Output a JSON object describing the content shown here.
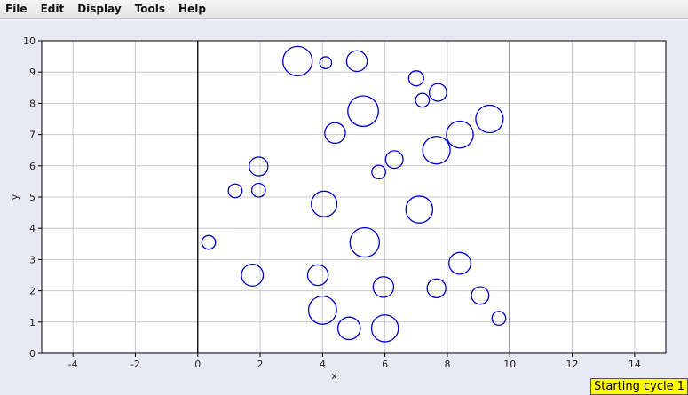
{
  "menu": {
    "items": [
      {
        "label": "File"
      },
      {
        "label": "Edit"
      },
      {
        "label": "Display"
      },
      {
        "label": "Tools"
      },
      {
        "label": "Help"
      }
    ]
  },
  "status": {
    "text": "Starting cycle 1"
  },
  "chart_data": {
    "type": "scatter",
    "xlabel": "x",
    "ylabel": "y",
    "xlim": [
      -5,
      15
    ],
    "ylim": [
      0,
      10
    ],
    "x_ticks": [
      -4,
      -2,
      0,
      2,
      4,
      6,
      8,
      10,
      12,
      14
    ],
    "y_ticks": [
      0,
      1,
      2,
      3,
      4,
      5,
      6,
      7,
      8,
      9,
      10
    ],
    "grid": true,
    "vertical_lines": [
      0,
      10
    ],
    "colors": {
      "marker": "#0000cc",
      "grid": "#c8c8c8",
      "boundary": "#000000"
    },
    "points": [
      {
        "x": 3.2,
        "y": 9.35,
        "r": 0.47
      },
      {
        "x": 4.1,
        "y": 9.3,
        "r": 0.19
      },
      {
        "x": 5.1,
        "y": 9.35,
        "r": 0.33
      },
      {
        "x": 7.0,
        "y": 8.8,
        "r": 0.24
      },
      {
        "x": 7.7,
        "y": 8.35,
        "r": 0.28
      },
      {
        "x": 7.2,
        "y": 8.1,
        "r": 0.22
      },
      {
        "x": 5.3,
        "y": 7.75,
        "r": 0.49
      },
      {
        "x": 9.35,
        "y": 7.5,
        "r": 0.44
      },
      {
        "x": 4.4,
        "y": 7.05,
        "r": 0.33
      },
      {
        "x": 8.4,
        "y": 7.0,
        "r": 0.43
      },
      {
        "x": 7.65,
        "y": 6.5,
        "r": 0.44
      },
      {
        "x": 6.3,
        "y": 6.2,
        "r": 0.28
      },
      {
        "x": 5.8,
        "y": 5.8,
        "r": 0.22
      },
      {
        "x": 1.95,
        "y": 5.98,
        "r": 0.3
      },
      {
        "x": 1.2,
        "y": 5.2,
        "r": 0.22
      },
      {
        "x": 1.95,
        "y": 5.22,
        "r": 0.22
      },
      {
        "x": 4.05,
        "y": 4.78,
        "r": 0.41
      },
      {
        "x": 7.1,
        "y": 4.6,
        "r": 0.43
      },
      {
        "x": 0.35,
        "y": 3.55,
        "r": 0.22
      },
      {
        "x": 5.35,
        "y": 3.55,
        "r": 0.47
      },
      {
        "x": 8.4,
        "y": 2.88,
        "r": 0.35
      },
      {
        "x": 1.75,
        "y": 2.5,
        "r": 0.35
      },
      {
        "x": 3.85,
        "y": 2.5,
        "r": 0.33
      },
      {
        "x": 5.95,
        "y": 2.12,
        "r": 0.33
      },
      {
        "x": 7.65,
        "y": 2.08,
        "r": 0.3
      },
      {
        "x": 9.05,
        "y": 1.85,
        "r": 0.28
      },
      {
        "x": 4.0,
        "y": 1.38,
        "r": 0.45
      },
      {
        "x": 9.65,
        "y": 1.12,
        "r": 0.22
      },
      {
        "x": 4.85,
        "y": 0.8,
        "r": 0.36
      },
      {
        "x": 6.0,
        "y": 0.8,
        "r": 0.43
      }
    ]
  }
}
